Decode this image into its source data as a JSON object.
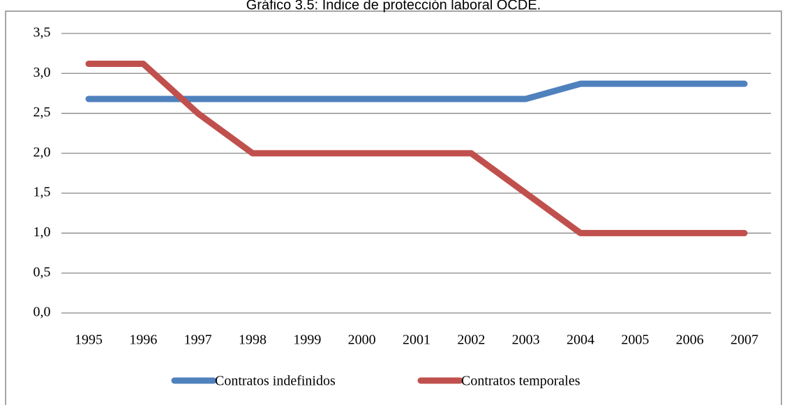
{
  "chart_data": {
    "type": "line",
    "title": "Gráfico 3.5: Índice de protección laboral OCDE.",
    "categories": [
      "1995",
      "1996",
      "1997",
      "1998",
      "1999",
      "2000",
      "2001",
      "2002",
      "2003",
      "2004",
      "2005",
      "2006",
      "2007"
    ],
    "series": [
      {
        "name": "Contratos indefinidos",
        "color": "#4f81bd",
        "values": [
          2.68,
          2.68,
          2.68,
          2.68,
          2.68,
          2.68,
          2.68,
          2.68,
          2.68,
          2.87,
          2.87,
          2.87,
          2.87
        ]
      },
      {
        "name": "Contratos temporales",
        "color": "#c0504d",
        "values": [
          3.12,
          3.12,
          2.5,
          2.0,
          2.0,
          2.0,
          2.0,
          2.0,
          1.5,
          1.0,
          1.0,
          1.0,
          1.0
        ]
      }
    ],
    "ylim": [
      0,
      3.5
    ],
    "yticks": [
      {
        "value": 0,
        "label": "0,0"
      },
      {
        "value": 0.5,
        "label": "0,5"
      },
      {
        "value": 1,
        "label": "1,0"
      },
      {
        "value": 1.5,
        "label": "1,5"
      },
      {
        "value": 2,
        "label": "2,0"
      },
      {
        "value": 2.5,
        "label": "2,5"
      },
      {
        "value": 3,
        "label": "3,0"
      },
      {
        "value": 3.5,
        "label": "3,5"
      }
    ],
    "grid": true,
    "legend": "bottom"
  }
}
